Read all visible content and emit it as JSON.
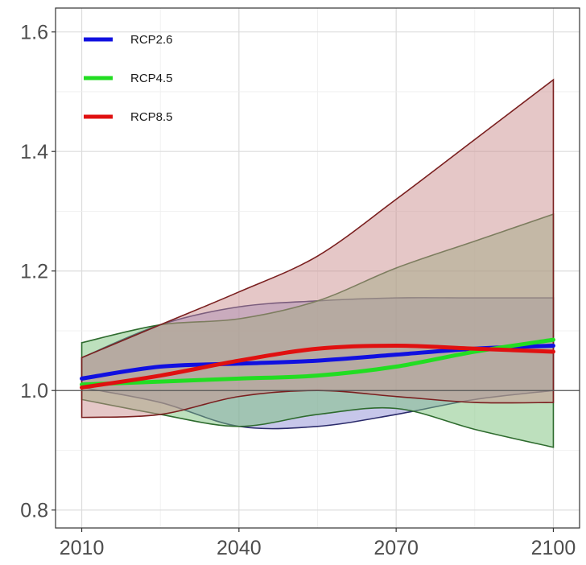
{
  "chart_data": {
    "type": "area",
    "title": "",
    "xlabel": "",
    "ylabel": "",
    "xlim": [
      2005,
      2105
    ],
    "ylim": [
      0.77,
      1.64
    ],
    "x_ticks": [
      2010,
      2040,
      2070,
      2100
    ],
    "y_ticks": [
      0.8,
      1.0,
      1.2,
      1.4,
      1.6
    ],
    "x_tick_labels": [
      "2010",
      "2040",
      "2070",
      "2100"
    ],
    "y_tick_labels": [
      "0.8",
      "1.0",
      "1.2",
      "1.4",
      "1.6"
    ],
    "reference_line": 1.0,
    "grid": true,
    "legend_position": "top-left",
    "series": [
      {
        "name": "RCP2.6",
        "color": "#1010e0",
        "band_fill": "#8f8fd6",
        "band_stroke": "#2b2b6b",
        "x": [
          2010,
          2025,
          2040,
          2055,
          2070,
          2085,
          2100
        ],
        "mean": [
          1.02,
          1.04,
          1.045,
          1.05,
          1.06,
          1.07,
          1.075
        ],
        "upper": [
          1.055,
          1.11,
          1.14,
          1.15,
          1.155,
          1.155,
          1.155
        ],
        "lower": [
          1.005,
          0.98,
          0.94,
          0.94,
          0.96,
          0.985,
          1.0
        ]
      },
      {
        "name": "RCP4.5",
        "color": "#22dd22",
        "band_fill": "#7cc27c",
        "band_stroke": "#2e6b2e",
        "x": [
          2010,
          2025,
          2040,
          2055,
          2070,
          2085,
          2100
        ],
        "mean": [
          1.01,
          1.015,
          1.02,
          1.025,
          1.04,
          1.065,
          1.085
        ],
        "upper": [
          1.08,
          1.11,
          1.12,
          1.15,
          1.205,
          1.25,
          1.295
        ],
        "lower": [
          0.985,
          0.96,
          0.94,
          0.96,
          0.97,
          0.935,
          0.905
        ]
      },
      {
        "name": "RCP8.5",
        "color": "#e01010",
        "band_fill": "#cc8f8f",
        "band_stroke": "#7a1f1f",
        "x": [
          2010,
          2025,
          2040,
          2055,
          2070,
          2085,
          2100
        ],
        "mean": [
          1.005,
          1.025,
          1.05,
          1.07,
          1.075,
          1.07,
          1.065
        ],
        "upper": [
          1.055,
          1.11,
          1.165,
          1.225,
          1.32,
          1.42,
          1.52
        ],
        "lower": [
          0.955,
          0.96,
          0.99,
          1.0,
          0.99,
          0.98,
          0.98
        ]
      }
    ]
  }
}
